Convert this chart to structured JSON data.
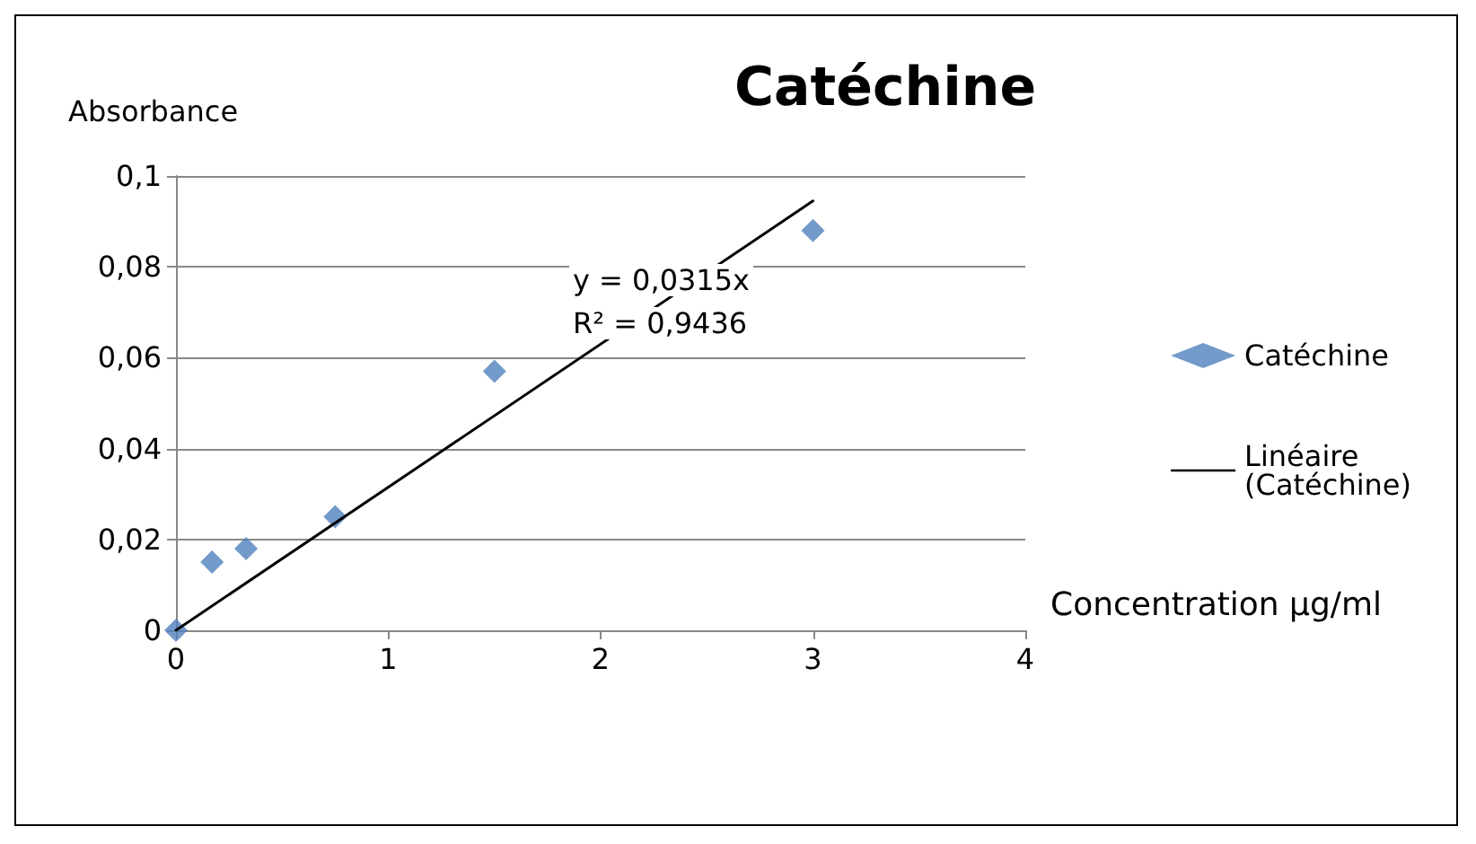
{
  "chart_data": {
    "type": "scatter",
    "title": "Catéchine",
    "xlabel": "Concentration µg/ml",
    "ylabel": "Absorbance",
    "annotations": [
      "y = 0,0315x",
      "R² = 0,9436"
    ],
    "x": [
      0,
      0.17,
      0.33,
      0.75,
      1.5,
      3
    ],
    "series": [
      {
        "name": "Catéchine",
        "color": "#4f81bd",
        "marker": "diamond",
        "values": [
          0,
          0.015,
          0.018,
          0.025,
          0.057,
          0.088
        ]
      },
      {
        "name": "Linéaire (Catéchine)",
        "type": "line",
        "color": "#000000",
        "marker": "none",
        "line_style": "solid",
        "x": [
          0,
          3
        ],
        "values": [
          0,
          0.0945
        ]
      }
    ],
    "xlim": [
      0,
      4
    ],
    "xticks": [
      0,
      1,
      2,
      3,
      4
    ],
    "ylim": [
      0,
      0.1
    ],
    "yticks": [
      0,
      {
        "value": 0.02,
        "label": "0,02"
      },
      {
        "value": 0.04,
        "label": "0,04"
      },
      {
        "value": 0.06,
        "label": "0,06"
      },
      {
        "value": 0.08,
        "label": "0,08"
      },
      {
        "value": 0.1,
        "label": "0,1"
      }
    ],
    "grid": "y",
    "legend": "right"
  }
}
